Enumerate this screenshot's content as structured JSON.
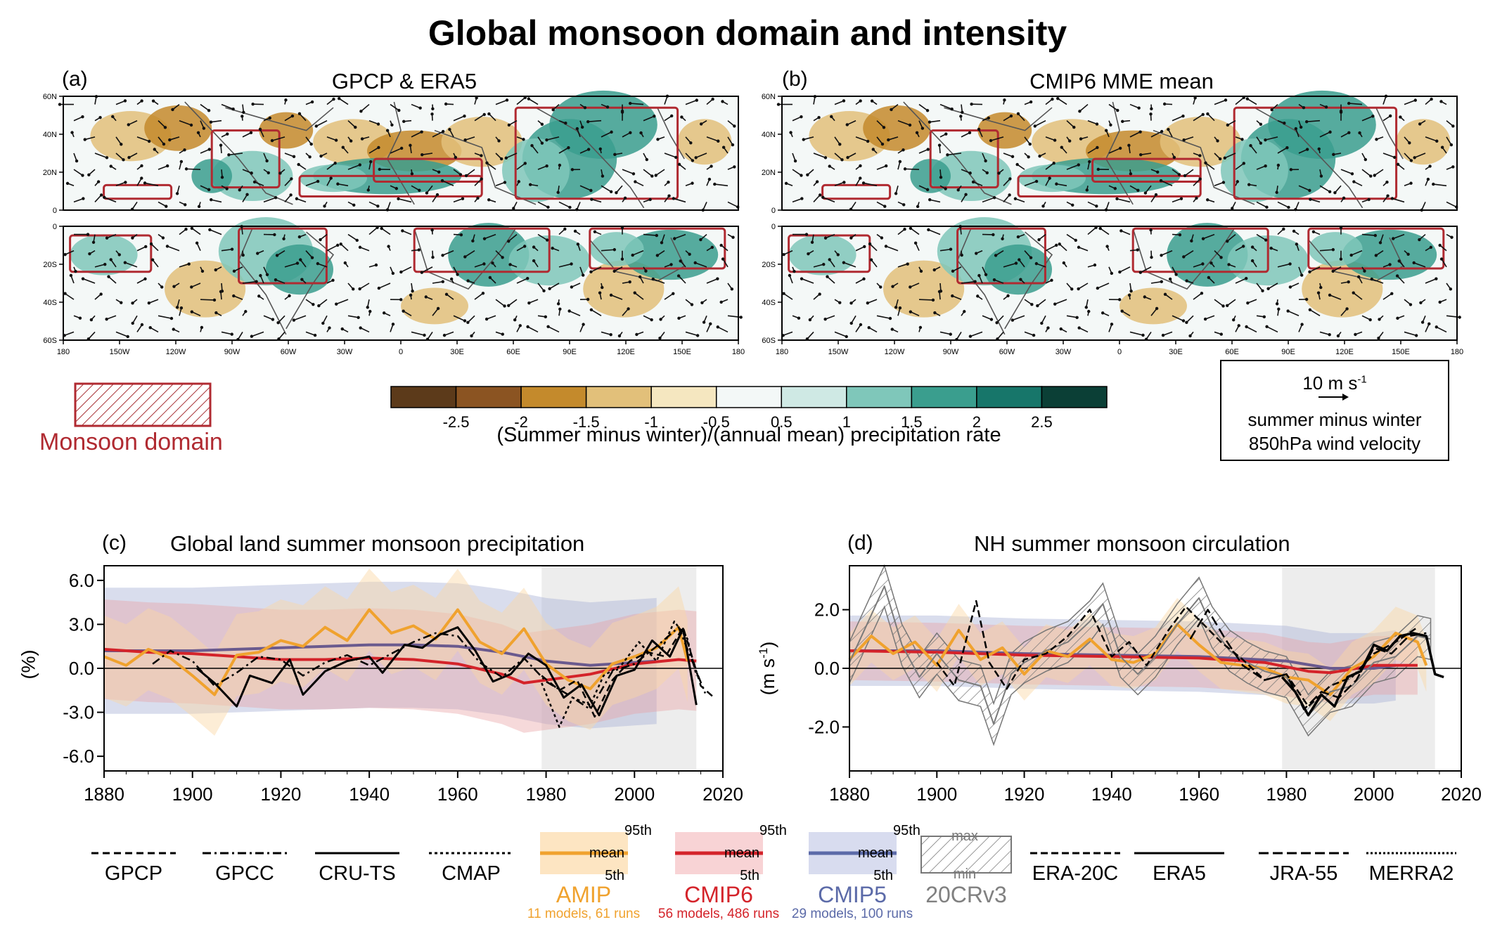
{
  "title": "Global monsoon domain and intensity",
  "panel_a": {
    "letter": "(a)",
    "title": "GPCP & ERA5"
  },
  "panel_b": {
    "letter": "(b)",
    "title": "CMIP6 MME mean"
  },
  "panel_c": {
    "letter": "(c)",
    "title": "Global land summer monsoon precipitation",
    "ylabel": "(%)"
  },
  "panel_d": {
    "letter": "(d)",
    "title": "NH summer monsoon circulation",
    "ylabel": "(m s-1)",
    "ylabel_base": "(m s",
    "ylabel_sup": "-1",
    "ylabel_end": ")"
  },
  "map_lat_labels_nh": [
    "60N",
    "40N",
    "20N",
    "0"
  ],
  "map_lat_labels_sh": [
    "0",
    "20S",
    "40S",
    "60S"
  ],
  "map_lon_labels": [
    "180",
    "150W",
    "120W",
    "90W",
    "60W",
    "30W",
    "0",
    "30E",
    "60E",
    "90E",
    "120E",
    "150E",
    "180"
  ],
  "monsoon_domain_label": "Monsoon domain",
  "colorbar": {
    "ticks": [
      "-2.5",
      "-2",
      "-1.5",
      "-1",
      "-0.5",
      "0.5",
      "1",
      "1.5",
      "2",
      "2.5"
    ],
    "colors": [
      "#5c3a1a",
      "#8b5422",
      "#c48a2c",
      "#e2c07a",
      "#f5e7c0",
      "#f3f8f7",
      "#cfe9e4",
      "#7fc7ba",
      "#3a9e8e",
      "#17766a",
      "#0b3f36"
    ],
    "label": "(Summer minus winter)/(annual mean) precipitation rate"
  },
  "wind_key": {
    "value": "10 m s",
    "sup": "-1",
    "line1": "summer minus winter",
    "line2": "850hPa wind velocity"
  },
  "legend": {
    "obs": [
      "GPCP",
      "GPCC",
      "CRU-TS",
      "CMAP"
    ],
    "reanalysis": [
      "ERA-20C",
      "ERA5",
      "JRA-55",
      "MERRA2"
    ],
    "band_labels": {
      "p95": "95th",
      "mean": "mean",
      "p5": "5th",
      "max": "max",
      "min": "min"
    },
    "ensembles": [
      {
        "name": "AMIP",
        "detail": "11 models, 61 runs",
        "color": "#f0a22e"
      },
      {
        "name": "CMIP6",
        "detail": "56 models, 486 runs",
        "color": "#d4232a"
      },
      {
        "name": "CMIP5",
        "detail": "29 models, 100 runs",
        "color": "#5b6aa8"
      },
      {
        "name": "20CRv3",
        "detail": "",
        "color": "#808080"
      }
    ]
  },
  "chart_data": [
    {
      "type": "line",
      "title": "Global land summer monsoon precipitation",
      "ylabel": "(%)",
      "xlim": [
        1880,
        2020
      ],
      "ylim": [
        -7.0,
        7.0
      ],
      "xticks": [
        1880,
        1900,
        1920,
        1940,
        1960,
        1980,
        2000,
        2020
      ],
      "yticks": [
        "6.0",
        "3.0",
        "0.0",
        "-3.0",
        "-6.0"
      ],
      "ytick_values": [
        6,
        3,
        0,
        -3,
        -6
      ],
      "shaded_period": [
        1979,
        2014
      ],
      "series": [
        {
          "name": "CMIP5",
          "x": [
            1880,
            1890,
            1900,
            1910,
            1920,
            1930,
            1940,
            1950,
            1960,
            1970,
            1980,
            1990,
            2000,
            2005
          ],
          "y": [
            1.2,
            1.2,
            1.2,
            1.3,
            1.4,
            1.5,
            1.6,
            1.6,
            1.5,
            1.1,
            0.5,
            0.2,
            0.4,
            0.5
          ]
        },
        {
          "name": "CMIP6",
          "x": [
            1880,
            1890,
            1900,
            1910,
            1920,
            1930,
            1940,
            1950,
            1960,
            1970,
            1975,
            1980,
            1990,
            2000,
            2010,
            2014
          ],
          "y": [
            1.3,
            1.1,
            1.0,
            0.8,
            0.6,
            0.6,
            0.7,
            0.6,
            0.3,
            -0.4,
            -1.0,
            -0.8,
            -0.4,
            0.3,
            0.6,
            0.5
          ]
        },
        {
          "name": "AMIP",
          "x": [
            1880,
            1885,
            1890,
            1895,
            1900,
            1905,
            1910,
            1915,
            1920,
            1925,
            1930,
            1935,
            1940,
            1945,
            1950,
            1955,
            1960,
            1965,
            1970,
            1975,
            1980,
            1985,
            1990,
            1995,
            2000,
            2005,
            2010,
            2012
          ],
          "y": [
            0.8,
            0.2,
            1.3,
            0.7,
            -0.5,
            -1.8,
            0.9,
            1.1,
            1.9,
            1.5,
            2.8,
            1.9,
            4.0,
            2.4,
            2.9,
            2.0,
            4.0,
            1.8,
            1.0,
            2.7,
            0.3,
            -0.8,
            -1.4,
            0.3,
            0.8,
            1.4,
            2.8,
            0.5
          ]
        },
        {
          "name": "CRU-TS",
          "x": [
            1901,
            1905,
            1910,
            1913,
            1918,
            1922,
            1925,
            1930,
            1935,
            1940,
            1943,
            1948,
            1952,
            1956,
            1960,
            1964,
            1968,
            1972,
            1976,
            1980,
            1984,
            1988,
            1992,
            1996,
            2000,
            2004,
            2008,
            2011,
            2014
          ],
          "y": [
            0.0,
            -1.0,
            -2.6,
            -0.5,
            -1.0,
            0.6,
            -1.8,
            -0.2,
            0.5,
            0.8,
            -0.3,
            1.6,
            1.4,
            2.3,
            2.8,
            1.2,
            -0.9,
            -0.4,
            1.0,
            0.2,
            -2.0,
            -1.1,
            -3.2,
            -0.5,
            -0.1,
            1.9,
            0.8,
            2.7,
            -2.5
          ]
        },
        {
          "name": "GPCC",
          "x": [
            1891,
            1895,
            1900,
            1905,
            1910,
            1915,
            1920,
            1925,
            1930,
            1935,
            1940,
            1945,
            1950,
            1955,
            1960,
            1965,
            1970,
            1975,
            1980,
            1985,
            1990,
            1995,
            2000,
            2005,
            2010,
            2016
          ],
          "y": [
            0.3,
            1.2,
            0.5,
            -1.2,
            -0.3,
            0.8,
            0.6,
            -0.5,
            0.4,
            0.9,
            0.2,
            1.0,
            1.8,
            2.4,
            2.2,
            0.4,
            -0.6,
            0.7,
            -0.9,
            -1.8,
            -2.8,
            -0.2,
            0.3,
            1.5,
            2.8,
            -1.7
          ]
        },
        {
          "name": "GPCP",
          "x": [
            1979,
            1983,
            1987,
            1991,
            1995,
            1999,
            2003,
            2007,
            2011,
            2015,
            2018
          ],
          "y": [
            -0.5,
            -1.5,
            -0.8,
            -3.3,
            -0.8,
            0.5,
            1.1,
            0.8,
            2.8,
            -1.2,
            -2.0
          ]
        },
        {
          "name": "CMAP",
          "x": [
            1979,
            1983,
            1986,
            1990,
            1993,
            1997,
            2001,
            2005,
            2009,
            2012,
            2014
          ],
          "y": [
            -1.0,
            -4.0,
            -2.0,
            -2.5,
            -0.5,
            0.2,
            1.8,
            0.5,
            3.2,
            2.0,
            -0.5
          ]
        }
      ]
    },
    {
      "type": "line",
      "title": "NH summer monsoon circulation",
      "ylabel": "(m s-1)",
      "xlim": [
        1880,
        2020
      ],
      "ylim": [
        -3.5,
        3.5
      ],
      "xticks": [
        1880,
        1900,
        1920,
        1940,
        1960,
        1980,
        2000,
        2020
      ],
      "yticks": [
        "2.0",
        "0.0",
        "-2.0"
      ],
      "ytick_values": [
        2,
        0,
        -2
      ],
      "shaded_period": [
        1979,
        2014
      ],
      "series": [
        {
          "name": "20CRv3",
          "x": [
            1880,
            1884,
            1888,
            1892,
            1896,
            1900,
            1905,
            1910,
            1913,
            1917,
            1920,
            1925,
            1930,
            1935,
            1938,
            1942,
            1946,
            1950,
            1955,
            1960,
            1963,
            1967,
            1971,
            1975,
            1980,
            1985,
            1990,
            1995,
            2000,
            2005,
            2010,
            2013
          ],
          "y": [
            0.2,
            1.5,
            2.8,
            0.8,
            -0.3,
            0.5,
            -0.4,
            -0.6,
            -1.9,
            -0.2,
            0.2,
            0.6,
            0.9,
            1.6,
            2.2,
            0.4,
            -0.2,
            0.4,
            1.5,
            2.4,
            1.4,
            0.6,
            0.2,
            -0.1,
            -0.3,
            -1.6,
            -0.8,
            -0.6,
            0.2,
            0.4,
            1.1,
            1.0
          ]
        },
        {
          "name": "CMIP5",
          "x": [
            1880,
            1900,
            1920,
            1940,
            1960,
            1980,
            1990,
            2000,
            2005
          ],
          "y": [
            0.6,
            0.6,
            0.5,
            0.45,
            0.4,
            0.25,
            0.0,
            0.0,
            0.1
          ]
        },
        {
          "name": "CMIP6",
          "x": [
            1880,
            1900,
            1920,
            1940,
            1960,
            1975,
            1985,
            1990,
            2000,
            2010
          ],
          "y": [
            0.6,
            0.55,
            0.45,
            0.4,
            0.35,
            0.2,
            -0.1,
            -0.15,
            0.1,
            0.1
          ]
        },
        {
          "name": "AMIP",
          "x": [
            1880,
            1885,
            1890,
            1895,
            1900,
            1905,
            1910,
            1915,
            1920,
            1925,
            1930,
            1935,
            1940,
            1945,
            1950,
            1955,
            1960,
            1965,
            1970,
            1975,
            1980,
            1985,
            1990,
            1995,
            2000,
            2005,
            2010,
            2012
          ],
          "y": [
            0.3,
            1.1,
            0.5,
            0.9,
            0.1,
            1.3,
            0.3,
            0.7,
            -0.2,
            0.6,
            0.4,
            1.0,
            0.3,
            0.2,
            0.5,
            1.5,
            0.8,
            0.2,
            0.1,
            0.0,
            -0.3,
            -0.4,
            -0.9,
            0.0,
            0.4,
            1.2,
            0.9,
            0.1
          ]
        },
        {
          "name": "ERA-20C",
          "x": [
            1900,
            1904,
            1909,
            1912,
            1916,
            1920,
            1925,
            1930,
            1935,
            1940,
            1944,
            1948,
            1953,
            1957,
            1961,
            1965,
            1970,
            1975,
            1980,
            1985,
            1990,
            1995,
            2000,
            2005,
            2010
          ],
          "y": [
            0.2,
            -0.6,
            2.3,
            0.2,
            -0.7,
            0.3,
            0.5,
            1.1,
            2.0,
            0.4,
            0.9,
            0.1,
            1.3,
            2.1,
            1.5,
            0.9,
            0.3,
            -0.4,
            -0.2,
            -1.3,
            -0.6,
            -0.3,
            0.5,
            0.9,
            1.4
          ]
        },
        {
          "name": "JRA-55",
          "x": [
            1958,
            1962,
            1966,
            1970,
            1975,
            1980,
            1984,
            1988,
            1992,
            1996,
            2000,
            2004,
            2008,
            2012
          ],
          "y": [
            1.0,
            2.0,
            1.0,
            0.1,
            -0.4,
            -0.2,
            -1.4,
            -0.8,
            -1.0,
            -0.4,
            0.7,
            0.5,
            1.1,
            1.2
          ]
        },
        {
          "name": "ERA5",
          "x": [
            1979,
            1982,
            1985,
            1988,
            1991,
            1994,
            1997,
            2000,
            2003,
            2006,
            2009,
            2012,
            2014,
            2016
          ],
          "y": [
            -0.3,
            -0.8,
            -1.6,
            -0.9,
            -1.3,
            -0.3,
            -0.1,
            0.8,
            0.6,
            1.1,
            1.2,
            1.1,
            -0.2,
            -0.3
          ]
        }
      ]
    }
  ]
}
